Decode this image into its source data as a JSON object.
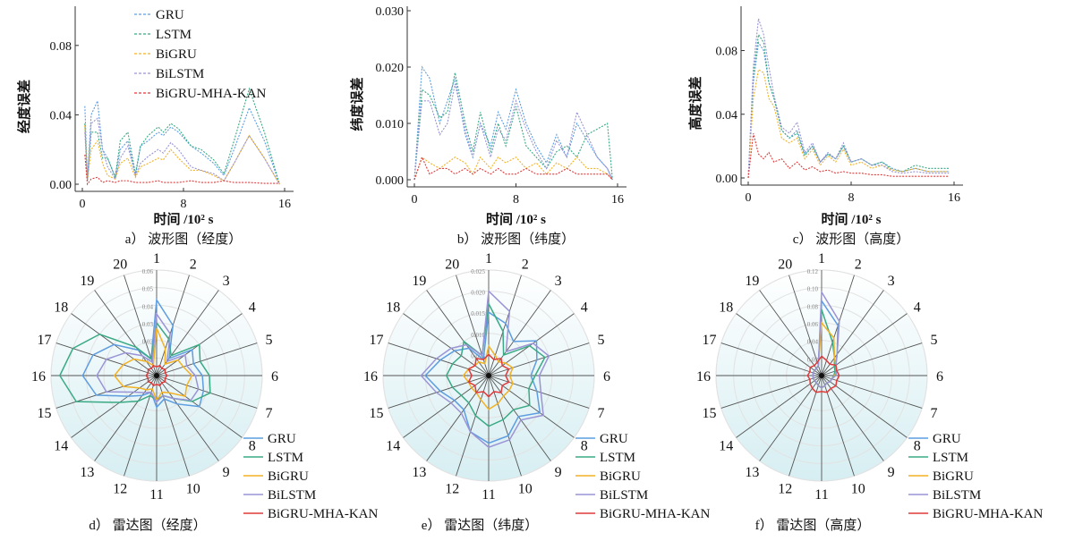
{
  "colors": {
    "GRU": "#5d9de0",
    "LSTM": "#3aaa84",
    "BiGRU": "#f2b226",
    "BiLSTM": "#9a94d6",
    "BiGRU-MHA-KAN": "#e03a3a"
  },
  "chart_data": [
    {
      "type": "line",
      "caption": "a） 波形图（经度）",
      "ylabel": "经度误差",
      "xlabel": "时间 /10² s",
      "xlim": [
        0,
        16
      ],
      "ylim": [
        0,
        0.1
      ],
      "xticks": [
        "0",
        "8",
        "16"
      ],
      "yticks": [
        "0.00",
        "0.04",
        "0.08"
      ],
      "ytickvals": [
        0,
        0.04,
        0.08
      ],
      "legend": "top",
      "legend_entries": [
        "GRU",
        "LSTM",
        "BiGRU",
        "BiLSTM",
        "BiGRU-MHA-KAN"
      ],
      "x": [
        0.2,
        0.4,
        0.7,
        1.2,
        1.6,
        2.0,
        2.6,
        3.0,
        3.6,
        4.2,
        4.6,
        5.2,
        6.0,
        6.4,
        7.0,
        7.6,
        8.6,
        9.4,
        10.4,
        11.2,
        12,
        13.2,
        14.4,
        15.6
      ],
      "series": [
        {
          "name": "GRU",
          "values": [
            0.045,
            0.002,
            0.04,
            0.048,
            0.02,
            0.015,
            0.004,
            0.02,
            0.025,
            0.005,
            0.022,
            0.025,
            0.03,
            0.028,
            0.033,
            0.03,
            0.022,
            0.018,
            0.012,
            0.005,
            0.02,
            0.044,
            0.025,
            0
          ]
        },
        {
          "name": "LSTM",
          "values": [
            0.035,
            0.002,
            0.03,
            0.03,
            0.015,
            0.015,
            0.004,
            0.025,
            0.03,
            0.006,
            0.022,
            0.028,
            0.033,
            0.03,
            0.035,
            0.032,
            0.022,
            0.02,
            0.014,
            0.006,
            0.025,
            0.055,
            0.03,
            0
          ]
        },
        {
          "name": "BiGRU",
          "values": [
            0.034,
            0.002,
            0.02,
            0.025,
            0.012,
            0.005,
            0.003,
            0.012,
            0.015,
            0.004,
            0.01,
            0.012,
            0.015,
            0.014,
            0.02,
            0.015,
            0.008,
            0.008,
            0.005,
            0.002,
            0.012,
            0.028,
            0.015,
            0
          ]
        },
        {
          "name": "BiLSTM",
          "values": [
            0.03,
            0.002,
            0.035,
            0.038,
            0.02,
            0.01,
            0.003,
            0.015,
            0.022,
            0.005,
            0.012,
            0.016,
            0.02,
            0.018,
            0.024,
            0.02,
            0.01,
            0.008,
            0.006,
            0.002,
            0.012,
            0.028,
            0.015,
            0
          ]
        },
        {
          "name": "BiGRU-MHA-KAN",
          "values": [
            0.017,
            0,
            0.003,
            0.004,
            0.001,
            0.002,
            0.001,
            0.002,
            0.002,
            0.001,
            0.001,
            0.001,
            0.002,
            0.001,
            0.001,
            0.001,
            0.002,
            0.001,
            0.001,
            0.002,
            0.001,
            0.001,
            0.0005,
            0.0005
          ]
        }
      ]
    },
    {
      "type": "line",
      "caption": "b） 波形图（纬度）",
      "ylabel": "纬度误差",
      "xlabel": "时间 /10² s",
      "xlim": [
        0,
        16
      ],
      "ylim": [
        0,
        0.03
      ],
      "xticks": [
        "0",
        "8",
        "16"
      ],
      "yticks": [
        "0.000",
        "0.010",
        "0.020",
        "0.030"
      ],
      "ytickvals": [
        0,
        0.01,
        0.02,
        0.03
      ],
      "x": [
        0,
        0.6,
        1.2,
        2.0,
        2.6,
        3.2,
        4.0,
        4.6,
        5.2,
        6.0,
        6.6,
        7.2,
        8.0,
        8.8,
        9.6,
        10.4,
        11.2,
        12,
        12.8,
        13.6,
        14.4,
        15.2,
        15.6
      ],
      "series": [
        {
          "name": "GRU",
          "values": [
            0,
            0.02,
            0.018,
            0.01,
            0.014,
            0.018,
            0.008,
            0.004,
            0.01,
            0.006,
            0.012,
            0.009,
            0.016,
            0.01,
            0.006,
            0.003,
            0.008,
            0.004,
            0.01,
            0.007,
            0.004,
            0.002,
            0
          ]
        },
        {
          "name": "LSTM",
          "values": [
            0,
            0.016,
            0.015,
            0.011,
            0.012,
            0.019,
            0.01,
            0.005,
            0.012,
            0.005,
            0.01,
            0.006,
            0.013,
            0.006,
            0.004,
            0.002,
            0.005,
            0.006,
            0.004,
            0.008,
            0.009,
            0.01,
            0
          ]
        },
        {
          "name": "BiGRU",
          "values": [
            0,
            0.004,
            0.003,
            0.002,
            0.003,
            0.004,
            0.003,
            0.001,
            0.004,
            0.002,
            0.004,
            0.003,
            0.004,
            0.002,
            0.003,
            0.001,
            0.003,
            0.002,
            0.004,
            0.002,
            0.002,
            0.001,
            0
          ]
        },
        {
          "name": "BiLSTM",
          "values": [
            0,
            0.014,
            0.014,
            0.008,
            0.01,
            0.017,
            0.009,
            0.004,
            0.01,
            0.004,
            0.009,
            0.007,
            0.014,
            0.009,
            0.005,
            0.002,
            0.007,
            0.004,
            0.012,
            0.008,
            0.004,
            0.002,
            0
          ]
        },
        {
          "name": "BiGRU-MHA-KAN",
          "values": [
            0,
            0.004,
            0.001,
            0.002,
            0.002,
            0.001,
            0.002,
            0.001,
            0.002,
            0.001,
            0.002,
            0.001,
            0.001,
            0.002,
            0.001,
            0.001,
            0.001,
            0.002,
            0.001,
            0.001,
            0.001,
            0.001,
            0
          ]
        }
      ]
    },
    {
      "type": "line",
      "caption": "c） 波形图（高度）",
      "ylabel": "高度误差",
      "xlabel": "时间 /10² s",
      "xlim": [
        0,
        16
      ],
      "ylim": [
        0,
        0.105
      ],
      "xticks": [
        "0",
        "8",
        "16"
      ],
      "yticks": [
        "0.00",
        "0.04",
        "0.08"
      ],
      "ytickvals": [
        0,
        0.04,
        0.08
      ],
      "x": [
        0,
        0.4,
        0.8,
        1.2,
        1.6,
        2.0,
        2.6,
        3.2,
        3.8,
        4.4,
        5,
        5.6,
        6.2,
        6.8,
        7.4,
        8,
        8.8,
        9.6,
        10.4,
        11.2,
        12,
        13,
        14,
        15.6
      ],
      "series": [
        {
          "name": "GRU",
          "values": [
            0,
            0.06,
            0.085,
            0.08,
            0.06,
            0.05,
            0.03,
            0.025,
            0.03,
            0.015,
            0.02,
            0.01,
            0.015,
            0.012,
            0.02,
            0.01,
            0.012,
            0.008,
            0.01,
            0.006,
            0.004,
            0.006,
            0.004,
            0.004
          ]
        },
        {
          "name": "LSTM",
          "values": [
            0,
            0.065,
            0.09,
            0.085,
            0.06,
            0.05,
            0.03,
            0.025,
            0.028,
            0.014,
            0.02,
            0.01,
            0.015,
            0.012,
            0.02,
            0.01,
            0.012,
            0.008,
            0.01,
            0.005,
            0.004,
            0.008,
            0.006,
            0.006
          ]
        },
        {
          "name": "BiGRU",
          "values": [
            0,
            0.05,
            0.068,
            0.066,
            0.05,
            0.045,
            0.025,
            0.022,
            0.025,
            0.012,
            0.018,
            0.008,
            0.014,
            0.01,
            0.018,
            0.008,
            0.01,
            0.006,
            0.008,
            0.005,
            0.004,
            0.006,
            0.004,
            0.004
          ]
        },
        {
          "name": "BiLSTM",
          "values": [
            0,
            0.07,
            0.1,
            0.09,
            0.07,
            0.052,
            0.032,
            0.028,
            0.035,
            0.016,
            0.022,
            0.01,
            0.016,
            0.012,
            0.022,
            0.01,
            0.012,
            0.008,
            0.008,
            0.004,
            0.003,
            0.004,
            0.003,
            0.003
          ]
        },
        {
          "name": "BiGRU-MHA-KAN",
          "values": [
            0,
            0.028,
            0.015,
            0.012,
            0.016,
            0.01,
            0.012,
            0.006,
            0.01,
            0.005,
            0.007,
            0.004,
            0.005,
            0.003,
            0.004,
            0.003,
            0.003,
            0.002,
            0.002,
            0.001,
            0.001,
            0.001,
            0.001,
            0.001
          ]
        }
      ]
    },
    {
      "type": "radar",
      "caption": "d） 雷达图（经度）",
      "max": 0.06,
      "rticks": [
        "0.01",
        "0.02",
        "0.03",
        "0.04",
        "0.05",
        "0.06"
      ],
      "rtickvals": [
        0.01,
        0.02,
        0.03,
        0.04,
        0.05,
        0.06
      ],
      "axes": [
        "1",
        "2",
        "3",
        "4",
        "5",
        "6",
        "7",
        "8",
        "9",
        "10",
        "11",
        "12",
        "13",
        "14",
        "15",
        "16",
        "17",
        "18",
        "19",
        "20"
      ],
      "legend": "bottom-right",
      "legend_entries": [
        "GRU",
        "LSTM",
        "BiGRU",
        "BiLSTM",
        "BiGRU-MHA-KAN"
      ],
      "series": [
        {
          "name": "GRU",
          "values": [
            0.043,
            0.03,
            0.012,
            0.025,
            0.022,
            0.026,
            0.028,
            0.03,
            0.02,
            0.014,
            0.018,
            0.01,
            0.014,
            0.02,
            0.036,
            0.042,
            0.038,
            0.03,
            0.018,
            0.01
          ]
        },
        {
          "name": "LSTM",
          "values": [
            0.03,
            0.022,
            0.014,
            0.03,
            0.026,
            0.03,
            0.032,
            0.025,
            0.016,
            0.012,
            0.014,
            0.012,
            0.018,
            0.026,
            0.048,
            0.055,
            0.05,
            0.04,
            0.02,
            0.01
          ]
        },
        {
          "name": "BiGRU",
          "values": [
            0.027,
            0.016,
            0.008,
            0.015,
            0.016,
            0.02,
            0.018,
            0.02,
            0.012,
            0.01,
            0.014,
            0.008,
            0.01,
            0.012,
            0.02,
            0.024,
            0.02,
            0.016,
            0.01,
            0.006
          ]
        },
        {
          "name": "BiLSTM",
          "values": [
            0.035,
            0.025,
            0.01,
            0.02,
            0.018,
            0.022,
            0.025,
            0.024,
            0.016,
            0.012,
            0.015,
            0.01,
            0.012,
            0.016,
            0.03,
            0.034,
            0.03,
            0.022,
            0.014,
            0.008
          ]
        },
        {
          "name": "BiGRU-MHA-KAN",
          "values": [
            0.005,
            0.006,
            0.005,
            0.006,
            0.005,
            0.006,
            0.005,
            0.006,
            0.005,
            0.006,
            0.005,
            0.006,
            0.005,
            0.006,
            0.005,
            0.006,
            0.005,
            0.006,
            0.005,
            0.006
          ]
        }
      ]
    },
    {
      "type": "radar",
      "caption": "e） 雷达图（纬度）",
      "max": 0.025,
      "rticks": [
        "0.005",
        "0.010",
        "0.015",
        "0.020",
        "0.025"
      ],
      "rtickvals": [
        0.005,
        0.01,
        0.015,
        0.02,
        0.025
      ],
      "axes": [
        "1",
        "2",
        "3",
        "4",
        "5",
        "6",
        "7",
        "8",
        "9",
        "10",
        "11",
        "12",
        "13",
        "14",
        "15",
        "16",
        "17",
        "18",
        "19",
        "20"
      ],
      "series": [
        {
          "name": "GRU",
          "values": [
            0.015,
            0.013,
            0.01,
            0.014,
            0.012,
            0.01,
            0.012,
            0.015,
            0.012,
            0.015,
            0.016,
            0.014,
            0.01,
            0.01,
            0.012,
            0.015,
            0.012,
            0.01,
            0.008,
            0.004
          ]
        },
        {
          "name": "LSTM",
          "values": [
            0.017,
            0.011,
            0.006,
            0.012,
            0.014,
            0.011,
            0.01,
            0.012,
            0.01,
            0.011,
            0.012,
            0.01,
            0.008,
            0.008,
            0.009,
            0.01,
            0.009,
            0.008,
            0.01,
            0.005
          ]
        },
        {
          "name": "BiGRU",
          "values": [
            0.007,
            0.005,
            0.004,
            0.005,
            0.006,
            0.005,
            0.006,
            0.006,
            0.006,
            0.007,
            0.008,
            0.006,
            0.005,
            0.005,
            0.005,
            0.006,
            0.005,
            0.004,
            0.004,
            0.003
          ]
        },
        {
          "name": "BiLSTM",
          "values": [
            0.02,
            0.016,
            0.007,
            0.013,
            0.015,
            0.012,
            0.013,
            0.016,
            0.013,
            0.016,
            0.017,
            0.014,
            0.011,
            0.011,
            0.013,
            0.016,
            0.013,
            0.011,
            0.009,
            0.005
          ]
        },
        {
          "name": "BiGRU-MHA-KAN",
          "values": [
            0.005,
            0.004,
            0.005,
            0.004,
            0.005,
            0.004,
            0.005,
            0.004,
            0.005,
            0.004,
            0.005,
            0.004,
            0.005,
            0.004,
            0.005,
            0.004,
            0.005,
            0.004,
            0.005,
            0.004
          ]
        }
      ]
    },
    {
      "type": "radar",
      "caption": "f） 雷达图（高度）",
      "max": 0.12,
      "rticks": [
        "0.02",
        "0.04",
        "0.06",
        "0.08",
        "0.10",
        "0.12"
      ],
      "rtickvals": [
        0.02,
        0.04,
        0.06,
        0.08,
        0.1,
        0.12
      ],
      "axes": [
        "1",
        "2",
        "3",
        "4",
        "5",
        "6",
        "7",
        "8",
        "9",
        "10",
        "11",
        "12",
        "13",
        "14",
        "15",
        "16",
        "17",
        "18",
        "19",
        "20"
      ],
      "series": [
        {
          "name": "GRU",
          "values": [
            0.085,
            0.06,
            0.03,
            0.02,
            0.018,
            0.016,
            0.012,
            0.012,
            0.01,
            0.012,
            0.014,
            0.012,
            0.01,
            0.01,
            0.01,
            0.01,
            0.01,
            0.01,
            0.01,
            0.012
          ]
        },
        {
          "name": "LSTM",
          "values": [
            0.075,
            0.04,
            0.025,
            0.018,
            0.016,
            0.014,
            0.012,
            0.012,
            0.01,
            0.012,
            0.014,
            0.012,
            0.01,
            0.01,
            0.01,
            0.01,
            0.01,
            0.01,
            0.01,
            0.012
          ]
        },
        {
          "name": "BiGRU",
          "values": [
            0.06,
            0.045,
            0.025,
            0.02,
            0.018,
            0.015,
            0.012,
            0.012,
            0.01,
            0.012,
            0.014,
            0.012,
            0.01,
            0.01,
            0.01,
            0.01,
            0.01,
            0.01,
            0.01,
            0.012
          ]
        },
        {
          "name": "BiLSTM",
          "values": [
            0.095,
            0.065,
            0.03,
            0.02,
            0.018,
            0.016,
            0.012,
            0.012,
            0.01,
            0.012,
            0.014,
            0.012,
            0.01,
            0.01,
            0.01,
            0.01,
            0.01,
            0.01,
            0.01,
            0.012
          ]
        },
        {
          "name": "BiGRU-MHA-KAN",
          "values": [
            0.022,
            0.018,
            0.016,
            0.02,
            0.018,
            0.02,
            0.018,
            0.02,
            0.018,
            0.02,
            0.018,
            0.02,
            0.018,
            0.016,
            0.014,
            0.016,
            0.014,
            0.016,
            0.014,
            0.016
          ]
        }
      ]
    }
  ]
}
